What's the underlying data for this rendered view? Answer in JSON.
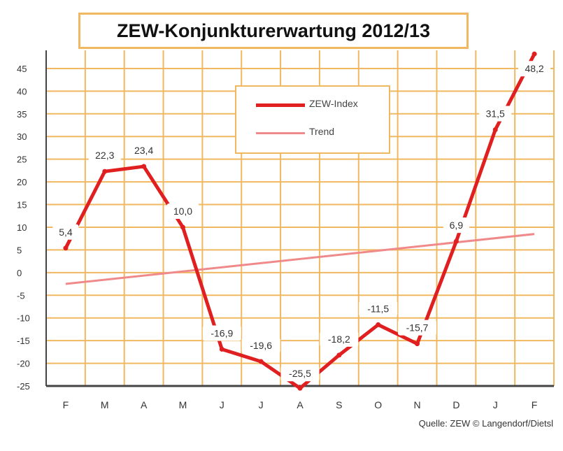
{
  "chart_data": {
    "type": "line",
    "title": "ZEW-Konjunkturerwartung 2012/13",
    "source": "Quelle: ZEW © Langendorf/Dietsl",
    "categories": [
      "F",
      "M",
      "A",
      "M",
      "J",
      "J",
      "A",
      "S",
      "O",
      "N",
      "D",
      "J",
      "F"
    ],
    "series": [
      {
        "name": "ZEW-Index",
        "color": "#e02020",
        "x": [
          0,
          1,
          2,
          3,
          4,
          5,
          6,
          7,
          8,
          9,
          10,
          11,
          12
        ],
        "values": [
          5.4,
          22.3,
          23.4,
          10.0,
          -16.9,
          -19.6,
          -25.5,
          -18.2,
          -11.5,
          -15.7,
          6.9,
          31.5,
          48.2
        ],
        "labels": [
          "5,4",
          "22,3",
          "23,4",
          "10,0",
          "-16,9",
          "-19,6",
          "-25,5",
          "-18,2",
          "-11,5",
          "-15,7",
          "6,9",
          "31,5",
          "48,2"
        ]
      },
      {
        "name": "Trend",
        "color": "#f08a8a",
        "x": [
          0,
          12
        ],
        "values": [
          -2.5,
          8.5
        ]
      }
    ],
    "yticks": [
      -25,
      -20,
      -15,
      -10,
      -5,
      0,
      5,
      10,
      15,
      20,
      25,
      30,
      35,
      40,
      45
    ],
    "ylim": [
      -25,
      49
    ],
    "grid": true,
    "legend_position": "top-center",
    "grid_color": "#f0b860"
  }
}
